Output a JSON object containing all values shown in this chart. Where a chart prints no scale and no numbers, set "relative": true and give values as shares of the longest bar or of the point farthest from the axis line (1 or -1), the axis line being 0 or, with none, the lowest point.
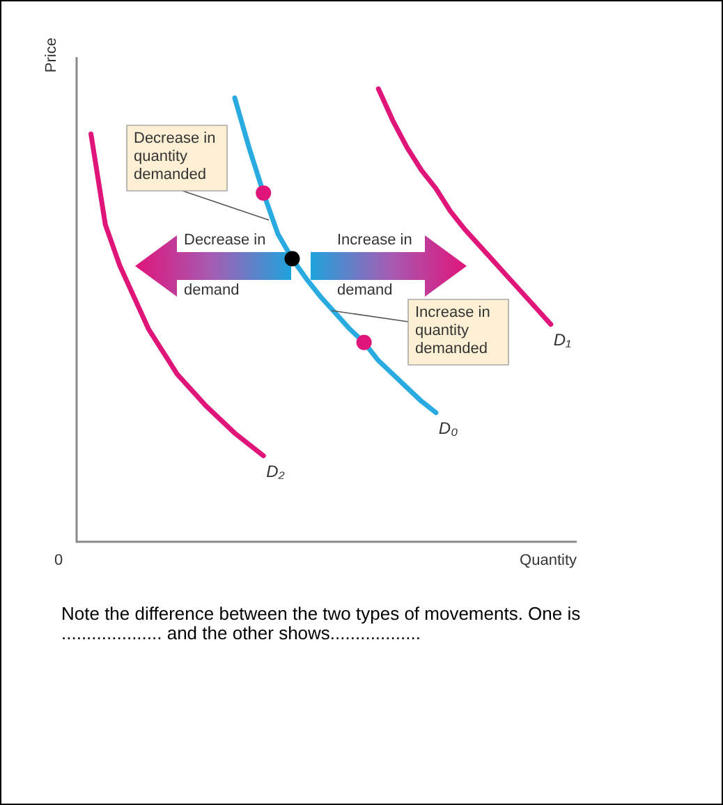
{
  "chart_data": {
    "type": "line",
    "relative": true,
    "xlabel": "Quantity",
    "ylabel": "Price",
    "legend": false,
    "marker": "none",
    "categories": [
      null,
      null,
      null,
      null,
      null,
      null,
      null,
      null,
      null,
      null,
      null,
      null,
      null,
      null,
      null,
      null,
      null,
      null,
      null,
      null,
      null,
      null,
      null,
      null,
      null,
      null,
      null,
      null,
      null,
      null,
      null,
      null,
      null
    ],
    "series": [
      {
        "name": "D₂",
        "color": "#e0157a",
        "values": [
          0.9,
          0.7,
          0.61,
          0.54,
          0.47,
          0.42,
          0.37,
          0.335,
          0.3,
          0.27,
          0.24,
          0.215,
          0.19,
          null,
          null,
          null,
          null,
          null,
          null,
          null,
          null,
          null,
          null,
          null,
          null,
          null,
          null,
          null,
          null,
          null,
          null,
          null,
          null
        ]
      },
      {
        "name": "D₀",
        "color": "#29abe2",
        "values": [
          null,
          null,
          null,
          null,
          null,
          null,
          null,
          null,
          null,
          null,
          0.98,
          0.87,
          0.77,
          0.68,
          0.625,
          0.58,
          0.54,
          0.505,
          0.47,
          0.44,
          0.4,
          0.37,
          0.34,
          0.31,
          0.285,
          null,
          null,
          null,
          null,
          null,
          null,
          null,
          null
        ],
        "colors": [
          null,
          null,
          null,
          null,
          null,
          null,
          null,
          null,
          null,
          null,
          null,
          null,
          "#e0157a",
          null,
          "#000000",
          null,
          null,
          null,
          null,
          "#e0157a",
          null,
          null,
          null,
          null,
          null,
          null,
          null,
          null,
          null,
          null,
          null,
          null,
          null
        ]
      },
      {
        "name": "D₁",
        "color": "#e0157a",
        "values": [
          null,
          null,
          null,
          null,
          null,
          null,
          null,
          null,
          null,
          null,
          null,
          null,
          null,
          null,
          null,
          null,
          null,
          null,
          null,
          null,
          1.0,
          0.93,
          0.87,
          0.82,
          0.78,
          0.73,
          0.69,
          0.655,
          0.62,
          0.585,
          0.55,
          0.515,
          0.48
        ]
      }
    ],
    "annotations": [
      "0",
      "Decrease in quantity demanded",
      "Increase in quantity demanded",
      "Decrease in demand",
      "Increase in demand",
      "Note the difference between the two types of movements.  One is .................... and the other shows.................."
    ]
  }
}
